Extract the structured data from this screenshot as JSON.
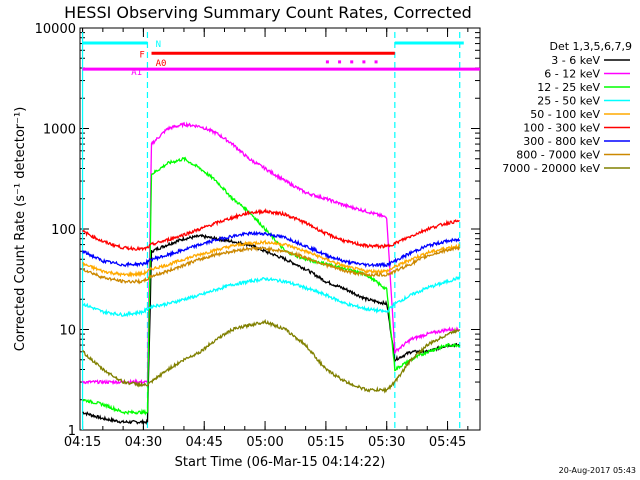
{
  "chart_data": {
    "type": "line",
    "title": "HESSI Observing Summary Count Rates, Corrected",
    "xlabel": "Start Time (06-Mar-15 04:14:22)",
    "ylabel": "Corrected Count Rate (s⁻¹ detector⁻¹)",
    "y_scale": "log",
    "ylim": [
      1,
      10000
    ],
    "xlim": [
      "04:14:22",
      "05:53:00"
    ],
    "y_ticks": [
      "1",
      "10",
      "100",
      "1000",
      "10000"
    ],
    "x_ticks": [
      "04:15",
      "04:30",
      "04:45",
      "05:00",
      "05:15",
      "05:30",
      "05:45"
    ],
    "legend_title": "Det 1,3,5,6,7,9",
    "legend_position": "right",
    "footer": "20-Aug-2017 05:43",
    "flags": [
      {
        "label": "N",
        "color": "#00ffff",
        "segments": [
          [
            "04:15",
            "04:31"
          ],
          [
            "05:32",
            "05:49"
          ]
        ],
        "level": 7100
      },
      {
        "label": "F",
        "color": "#ff0000",
        "segments": [
          [
            "04:32",
            "05:32"
          ]
        ],
        "level": 5600
      },
      {
        "label": "A0",
        "color": "#ff0000"
      },
      {
        "label": "A1",
        "color": "#ff00ff",
        "segments": [
          [
            "04:15",
            "05:53"
          ]
        ],
        "level": 3900
      }
    ],
    "vlines": [
      {
        "time": "04:15",
        "color": "#00ffff",
        "style": "solid"
      },
      {
        "time": "04:31",
        "color": "#00ffff",
        "style": "dashed"
      },
      {
        "time": "05:32",
        "color": "#00ffff",
        "style": "dashed"
      },
      {
        "time": "05:48",
        "color": "#00ffff",
        "style": "dashed"
      }
    ],
    "series": [
      {
        "name": "3 - 6 keV",
        "color": "#000000",
        "x": [
          "04:15",
          "04:20",
          "04:25",
          "04:30",
          "04:31",
          "04:32",
          "04:36",
          "04:40",
          "04:44",
          "04:48",
          "04:52",
          "04:56",
          "05:00",
          "05:05",
          "05:10",
          "05:15",
          "05:20",
          "05:25",
          "05:30",
          "05:32",
          "05:36",
          "05:40",
          "05:45",
          "05:48"
        ],
        "y": [
          1.5,
          1.3,
          1.2,
          1.2,
          1.2,
          60,
          70,
          80,
          85,
          80,
          75,
          70,
          60,
          50,
          40,
          30,
          25,
          20,
          18,
          5,
          6,
          6,
          7,
          7
        ]
      },
      {
        "name": "6 - 12 keV",
        "color": "#ff00ff",
        "x": [
          "04:15",
          "04:20",
          "04:25",
          "04:30",
          "04:31",
          "04:32",
          "04:36",
          "04:40",
          "04:44",
          "04:48",
          "04:52",
          "04:56",
          "05:00",
          "05:05",
          "05:10",
          "05:15",
          "05:20",
          "05:25",
          "05:30",
          "05:32",
          "05:36",
          "05:40",
          "05:45",
          "05:48"
        ],
        "y": [
          3,
          3,
          3,
          3,
          3,
          700,
          1000,
          1100,
          1050,
          900,
          700,
          500,
          400,
          300,
          230,
          200,
          170,
          150,
          130,
          6,
          8,
          9,
          10,
          10
        ]
      },
      {
        "name": "12 - 25 keV",
        "color": "#00ff00",
        "x": [
          "04:15",
          "04:20",
          "04:25",
          "04:30",
          "04:31",
          "04:32",
          "04:36",
          "04:40",
          "04:44",
          "04:48",
          "04:52",
          "04:56",
          "05:00",
          "05:05",
          "05:10",
          "05:15",
          "05:20",
          "05:25",
          "05:30",
          "05:32",
          "05:36",
          "05:40",
          "05:45",
          "05:48"
        ],
        "y": [
          2,
          1.8,
          1.5,
          1.5,
          1.5,
          350,
          450,
          500,
          400,
          300,
          200,
          150,
          100,
          60,
          50,
          45,
          40,
          35,
          25,
          4,
          5,
          6,
          7,
          7
        ]
      },
      {
        "name": "25 - 50 keV",
        "color": "#00ffff",
        "x": [
          "04:15",
          "04:20",
          "04:25",
          "04:30",
          "04:31",
          "04:32",
          "04:36",
          "04:40",
          "04:44",
          "04:48",
          "04:52",
          "04:56",
          "05:00",
          "05:05",
          "05:10",
          "05:15",
          "05:20",
          "05:25",
          "05:30",
          "05:32",
          "05:36",
          "05:40",
          "05:45",
          "05:48"
        ],
        "y": [
          18,
          15,
          14,
          15,
          16,
          17,
          18,
          20,
          22,
          25,
          28,
          30,
          32,
          30,
          26,
          22,
          18,
          16,
          15,
          18,
          22,
          26,
          30,
          33
        ]
      },
      {
        "name": "50 - 100 keV",
        "color": "#ffaa00",
        "x": [
          "04:15",
          "04:20",
          "04:25",
          "04:30",
          "04:31",
          "04:32",
          "04:36",
          "04:40",
          "04:44",
          "04:48",
          "04:52",
          "04:56",
          "05:00",
          "05:05",
          "05:10",
          "05:15",
          "05:20",
          "05:25",
          "05:30",
          "05:32",
          "05:36",
          "05:40",
          "05:45",
          "05:48"
        ],
        "y": [
          45,
          38,
          35,
          36,
          38,
          40,
          44,
          50,
          56,
          62,
          68,
          72,
          74,
          70,
          60,
          50,
          42,
          38,
          38,
          42,
          50,
          58,
          65,
          68
        ]
      },
      {
        "name": "100 - 300 keV",
        "color": "#ff0000",
        "x": [
          "04:15",
          "04:20",
          "04:25",
          "04:30",
          "04:31",
          "04:32",
          "04:36",
          "04:40",
          "04:44",
          "04:48",
          "04:52",
          "04:56",
          "05:00",
          "05:05",
          "05:10",
          "05:15",
          "05:20",
          "05:25",
          "05:30",
          "05:32",
          "05:36",
          "05:40",
          "05:45",
          "05:48"
        ],
        "y": [
          95,
          75,
          65,
          63,
          65,
          70,
          78,
          88,
          100,
          115,
          130,
          145,
          150,
          140,
          115,
          90,
          75,
          68,
          67,
          72,
          85,
          100,
          115,
          120
        ]
      },
      {
        "name": "300 - 800 keV",
        "color": "#0000ff",
        "x": [
          "04:15",
          "04:20",
          "04:25",
          "04:30",
          "04:31",
          "04:32",
          "04:36",
          "04:40",
          "04:44",
          "04:48",
          "04:52",
          "04:56",
          "05:00",
          "05:05",
          "05:10",
          "05:15",
          "05:20",
          "05:25",
          "05:30",
          "05:32",
          "05:36",
          "05:40",
          "05:45",
          "05:48"
        ],
        "y": [
          60,
          48,
          44,
          45,
          47,
          50,
          55,
          62,
          70,
          78,
          85,
          90,
          90,
          82,
          68,
          55,
          47,
          44,
          44,
          48,
          58,
          68,
          76,
          78
        ]
      },
      {
        "name": "800 - 7000 keV",
        "color": "#cc8800",
        "x": [
          "04:15",
          "04:20",
          "04:25",
          "04:30",
          "04:31",
          "04:32",
          "04:36",
          "04:40",
          "04:44",
          "04:48",
          "04:52",
          "04:56",
          "05:00",
          "05:05",
          "05:10",
          "05:15",
          "05:20",
          "05:25",
          "05:30",
          "05:32",
          "05:36",
          "05:40",
          "05:45",
          "05:48"
        ],
        "y": [
          40,
          33,
          30,
          30,
          32,
          34,
          38,
          44,
          50,
          56,
          60,
          64,
          64,
          60,
          52,
          44,
          38,
          35,
          35,
          38,
          45,
          54,
          62,
          64
        ]
      },
      {
        "name": "7000 - 20000 keV",
        "color": "#808000",
        "x": [
          "04:15",
          "04:20",
          "04:25",
          "04:30",
          "04:31",
          "04:32",
          "04:36",
          "04:40",
          "04:44",
          "04:48",
          "04:52",
          "04:56",
          "05:00",
          "05:05",
          "05:10",
          "05:15",
          "05:20",
          "05:25",
          "05:30",
          "05:32",
          "05:36",
          "05:40",
          "05:45",
          "05:48"
        ],
        "y": [
          6,
          4,
          3,
          2.8,
          2.8,
          3,
          4,
          5,
          6,
          8,
          10,
          11,
          12,
          10,
          7,
          4,
          3,
          2.5,
          2.5,
          3,
          5,
          7,
          9,
          10
        ]
      }
    ]
  }
}
